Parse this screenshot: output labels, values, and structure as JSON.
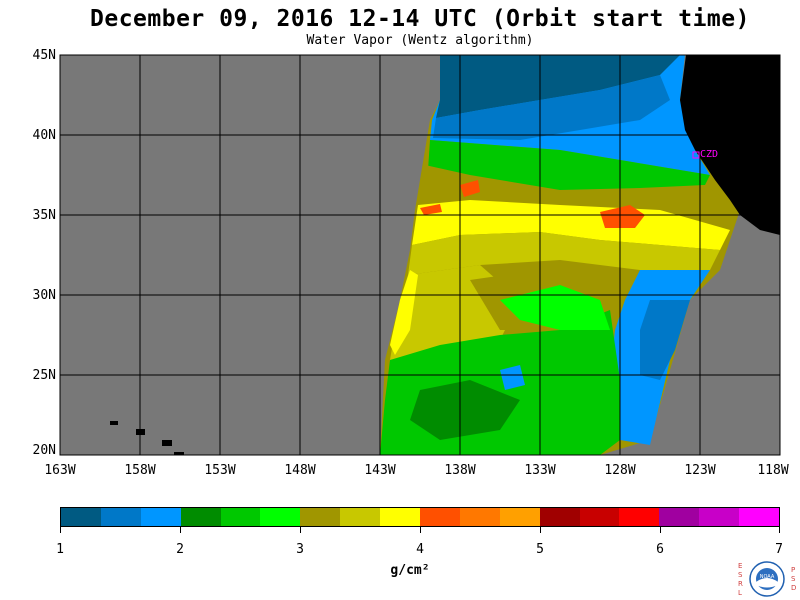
{
  "header": {
    "title": "December 09, 2016  12-14 UTC  (Orbit start time)",
    "subtitle": "Water Vapor (Wentz algorithm)"
  },
  "map": {
    "lat_labels": [
      "45N",
      "40N",
      "35N",
      "30N",
      "25N",
      "20N"
    ],
    "lon_labels": [
      "163W",
      "158W",
      "153W",
      "148W",
      "143W",
      "138W",
      "133W",
      "128W",
      "123W",
      "118W"
    ],
    "station_label": "CZD",
    "colors": {
      "background_no_data": "#787878",
      "land": "#000000",
      "gridline": "#000000",
      "station": "#ff00ff"
    }
  },
  "colorbar": {
    "colors": [
      "#005a82",
      "#0078c8",
      "#0096ff",
      "#008c00",
      "#00c800",
      "#00ff00",
      "#a09600",
      "#c8c800",
      "#ffff00",
      "#ff5000",
      "#ff7800",
      "#ffa000",
      "#a00000",
      "#c80000",
      "#ff0000",
      "#a000a0",
      "#c800c8",
      "#ff00ff"
    ],
    "tick_labels": [
      "1",
      "2",
      "3",
      "4",
      "5",
      "6",
      "7"
    ],
    "units": "g/cm²"
  },
  "logo": {
    "left_letters": "ESRL",
    "right_letters": "PSD",
    "center_text": "NOAA"
  }
}
